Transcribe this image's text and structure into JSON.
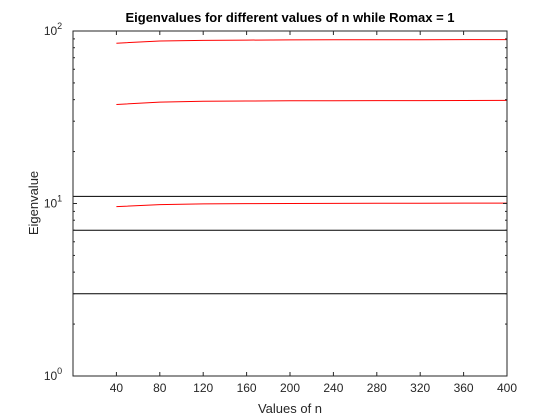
{
  "chart_data": {
    "type": "line",
    "title": "Eigenvalues for different values of n while Romax = 1",
    "xlabel": "Values of n",
    "ylabel": "Eigenvalue",
    "xlim": [
      0,
      400
    ],
    "ylim": [
      1,
      100
    ],
    "yscale": "log",
    "grid": false,
    "legend": "none",
    "xticks": [
      40,
      80,
      120,
      160,
      200,
      240,
      280,
      320,
      360,
      400
    ],
    "yticks": [
      {
        "base": "10",
        "exp": "0",
        "value": 1
      },
      {
        "base": "10",
        "exp": "1",
        "value": 10
      },
      {
        "base": "10",
        "exp": "2",
        "value": 100
      }
    ],
    "colors": {
      "series": "#ff0000",
      "reference": "#000000"
    },
    "x": [
      40,
      80,
      120,
      160,
      200,
      240,
      280,
      320,
      360,
      400
    ],
    "series": [
      {
        "color": "#ff0000",
        "values": [
          9.6,
          9.85,
          9.95,
          9.98,
          10.0,
          10.02,
          10.03,
          10.04,
          10.05,
          10.05
        ]
      },
      {
        "color": "#ff0000",
        "values": [
          37.5,
          38.7,
          39.1,
          39.3,
          39.4,
          39.45,
          39.5,
          39.5,
          39.55,
          39.6
        ]
      },
      {
        "color": "#ff0000",
        "values": [
          85.0,
          87.5,
          88.2,
          88.6,
          88.8,
          88.9,
          89.0,
          89.05,
          89.1,
          89.2
        ]
      }
    ],
    "reference_lines": [
      {
        "color": "#000000",
        "y": 11.0
      },
      {
        "color": "#000000",
        "y": 7.0
      },
      {
        "color": "#000000",
        "y": 3.0
      }
    ]
  }
}
